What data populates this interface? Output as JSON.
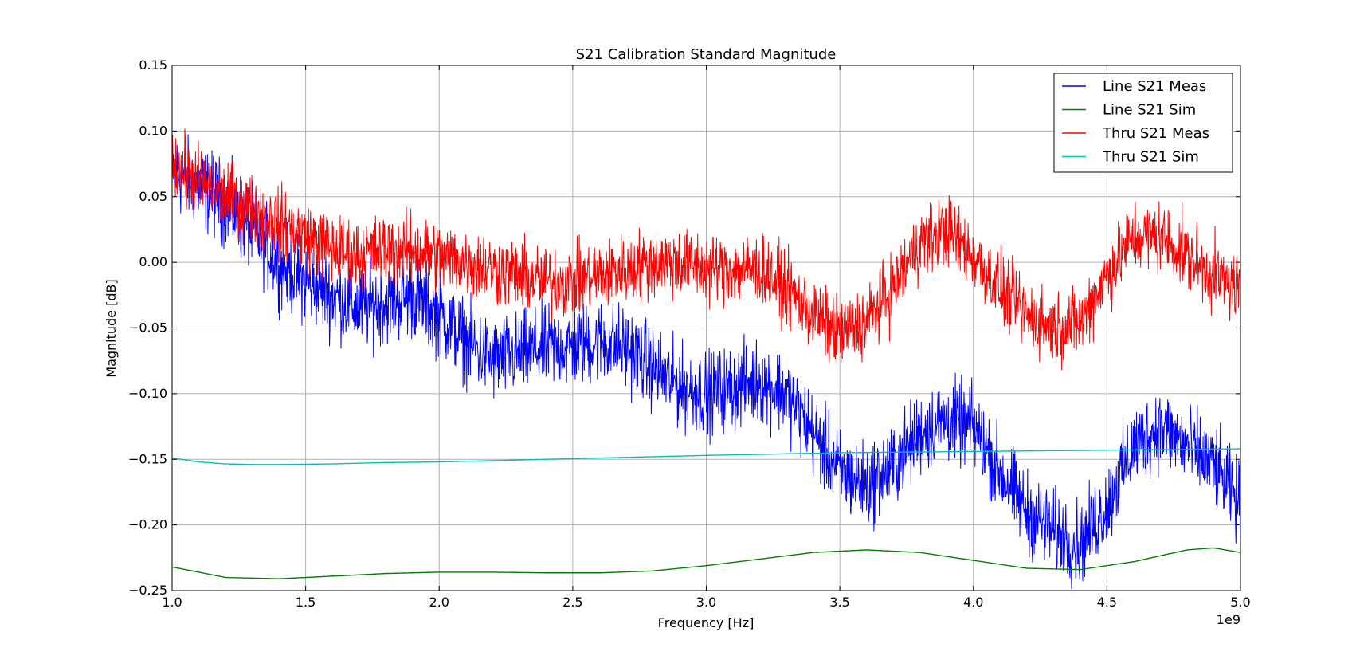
{
  "chart_data": {
    "type": "line",
    "title": "S21 Calibration Standard Magnitude",
    "xlabel": "Frequency [Hz]",
    "ylabel": "Magnitude [dB]",
    "x_offset_label": "1e9",
    "xlim": [
      1000000000.0,
      5000000000.0
    ],
    "ylim": [
      -0.25,
      0.15
    ],
    "grid": true,
    "legend_position": "top-right",
    "x_ticks": [
      {
        "value": 1000000000.0,
        "label": "1.0"
      },
      {
        "value": 1500000000.0,
        "label": "1.5"
      },
      {
        "value": 2000000000.0,
        "label": "2.0"
      },
      {
        "value": 2500000000.0,
        "label": "2.5"
      },
      {
        "value": 3000000000.0,
        "label": "3.0"
      },
      {
        "value": 3500000000.0,
        "label": "3.5"
      },
      {
        "value": 4000000000.0,
        "label": "4.0"
      },
      {
        "value": 4500000000.0,
        "label": "4.5"
      },
      {
        "value": 5000000000.0,
        "label": "5.0"
      }
    ],
    "y_ticks": [
      {
        "value": 0.15,
        "label": "0.15"
      },
      {
        "value": 0.1,
        "label": "0.10"
      },
      {
        "value": 0.05,
        "label": "0.05"
      },
      {
        "value": 0.0,
        "label": "0.00"
      },
      {
        "value": -0.05,
        "label": "−0.05"
      },
      {
        "value": -0.1,
        "label": "−0.10"
      },
      {
        "value": -0.15,
        "label": "−0.15"
      },
      {
        "value": -0.2,
        "label": "−0.20"
      },
      {
        "value": -0.25,
        "label": "−0.25"
      }
    ],
    "series": [
      {
        "name": "Line S21 Meas",
        "color": "#0000ff",
        "noisy": true,
        "noise_amplitude": 0.028,
        "x": [
          1000000000.0,
          1100000000.0,
          1200000000.0,
          1300000000.0,
          1400000000.0,
          1500000000.0,
          1600000000.0,
          1700000000.0,
          1800000000.0,
          1900000000.0,
          2000000000.0,
          2100000000.0,
          2200000000.0,
          2300000000.0,
          2400000000.0,
          2500000000.0,
          2600000000.0,
          2700000000.0,
          2800000000.0,
          2900000000.0,
          3000000000.0,
          3100000000.0,
          3200000000.0,
          3300000000.0,
          3400000000.0,
          3500000000.0,
          3600000000.0,
          3700000000.0,
          3800000000.0,
          3900000000.0,
          4000000000.0,
          4100000000.0,
          4200000000.0,
          4300000000.0,
          4400000000.0,
          4500000000.0,
          4600000000.0,
          4700000000.0,
          4800000000.0,
          4900000000.0,
          5000000000.0
        ],
        "y": [
          0.07,
          0.058,
          0.045,
          0.025,
          0.0,
          -0.015,
          -0.025,
          -0.035,
          -0.03,
          -0.025,
          -0.04,
          -0.06,
          -0.075,
          -0.07,
          -0.065,
          -0.065,
          -0.06,
          -0.065,
          -0.08,
          -0.095,
          -0.1,
          -0.095,
          -0.09,
          -0.1,
          -0.13,
          -0.16,
          -0.17,
          -0.155,
          -0.13,
          -0.12,
          -0.125,
          -0.16,
          -0.19,
          -0.205,
          -0.215,
          -0.185,
          -0.14,
          -0.125,
          -0.14,
          -0.155,
          -0.185
        ]
      },
      {
        "name": "Line S21 Sim",
        "color": "#008000",
        "noisy": false,
        "x": [
          1000000000.0,
          1200000000.0,
          1400000000.0,
          1600000000.0,
          1800000000.0,
          2000000000.0,
          2200000000.0,
          2400000000.0,
          2600000000.0,
          2800000000.0,
          3000000000.0,
          3200000000.0,
          3400000000.0,
          3600000000.0,
          3800000000.0,
          4000000000.0,
          4200000000.0,
          4400000000.0,
          4600000000.0,
          4800000000.0,
          4900000000.0,
          5000000000.0
        ],
        "y": [
          -0.232,
          -0.24,
          -0.241,
          -0.239,
          -0.237,
          -0.236,
          -0.236,
          -0.2365,
          -0.2365,
          -0.235,
          -0.231,
          -0.226,
          -0.221,
          -0.219,
          -0.221,
          -0.227,
          -0.233,
          -0.234,
          -0.228,
          -0.219,
          -0.2175,
          -0.221
        ]
      },
      {
        "name": "Thru S21 Meas",
        "color": "#ff0000",
        "noisy": true,
        "noise_amplitude": 0.024,
        "x": [
          1000000000.0,
          1100000000.0,
          1200000000.0,
          1300000000.0,
          1400000000.0,
          1500000000.0,
          1600000000.0,
          1700000000.0,
          1800000000.0,
          1900000000.0,
          2000000000.0,
          2100000000.0,
          2200000000.0,
          2300000000.0,
          2400000000.0,
          2500000000.0,
          2600000000.0,
          2700000000.0,
          2800000000.0,
          2900000000.0,
          3000000000.0,
          3100000000.0,
          3200000000.0,
          3300000000.0,
          3400000000.0,
          3500000000.0,
          3600000000.0,
          3700000000.0,
          3800000000.0,
          3900000000.0,
          4000000000.0,
          4100000000.0,
          4200000000.0,
          4300000000.0,
          4400000000.0,
          4500000000.0,
          4600000000.0,
          4700000000.0,
          4800000000.0,
          4900000000.0,
          5000000000.0
        ],
        "y": [
          0.075,
          0.062,
          0.05,
          0.04,
          0.03,
          0.02,
          0.01,
          0.005,
          0.01,
          0.01,
          0.005,
          0.0,
          -0.005,
          -0.01,
          -0.015,
          -0.015,
          -0.01,
          -0.005,
          0.0,
          0.0,
          -0.005,
          -0.005,
          -0.005,
          -0.02,
          -0.04,
          -0.055,
          -0.045,
          -0.02,
          0.015,
          0.025,
          0.005,
          -0.02,
          -0.04,
          -0.05,
          -0.045,
          -0.01,
          0.02,
          0.02,
          0.005,
          -0.01,
          -0.02
        ]
      },
      {
        "name": "Thru S21 Sim",
        "color": "#00bfbf",
        "noisy": false,
        "x": [
          1000000000.0,
          1100000000.0,
          1200000000.0,
          1300000000.0,
          1400000000.0,
          1600000000.0,
          1800000000.0,
          2000000000.0,
          2500000000.0,
          3000000000.0,
          3500000000.0,
          4000000000.0,
          4500000000.0,
          5000000000.0
        ],
        "y": [
          -0.149,
          -0.152,
          -0.1535,
          -0.154,
          -0.154,
          -0.1535,
          -0.1525,
          -0.152,
          -0.1495,
          -0.147,
          -0.145,
          -0.144,
          -0.143,
          -0.142
        ]
      }
    ]
  }
}
